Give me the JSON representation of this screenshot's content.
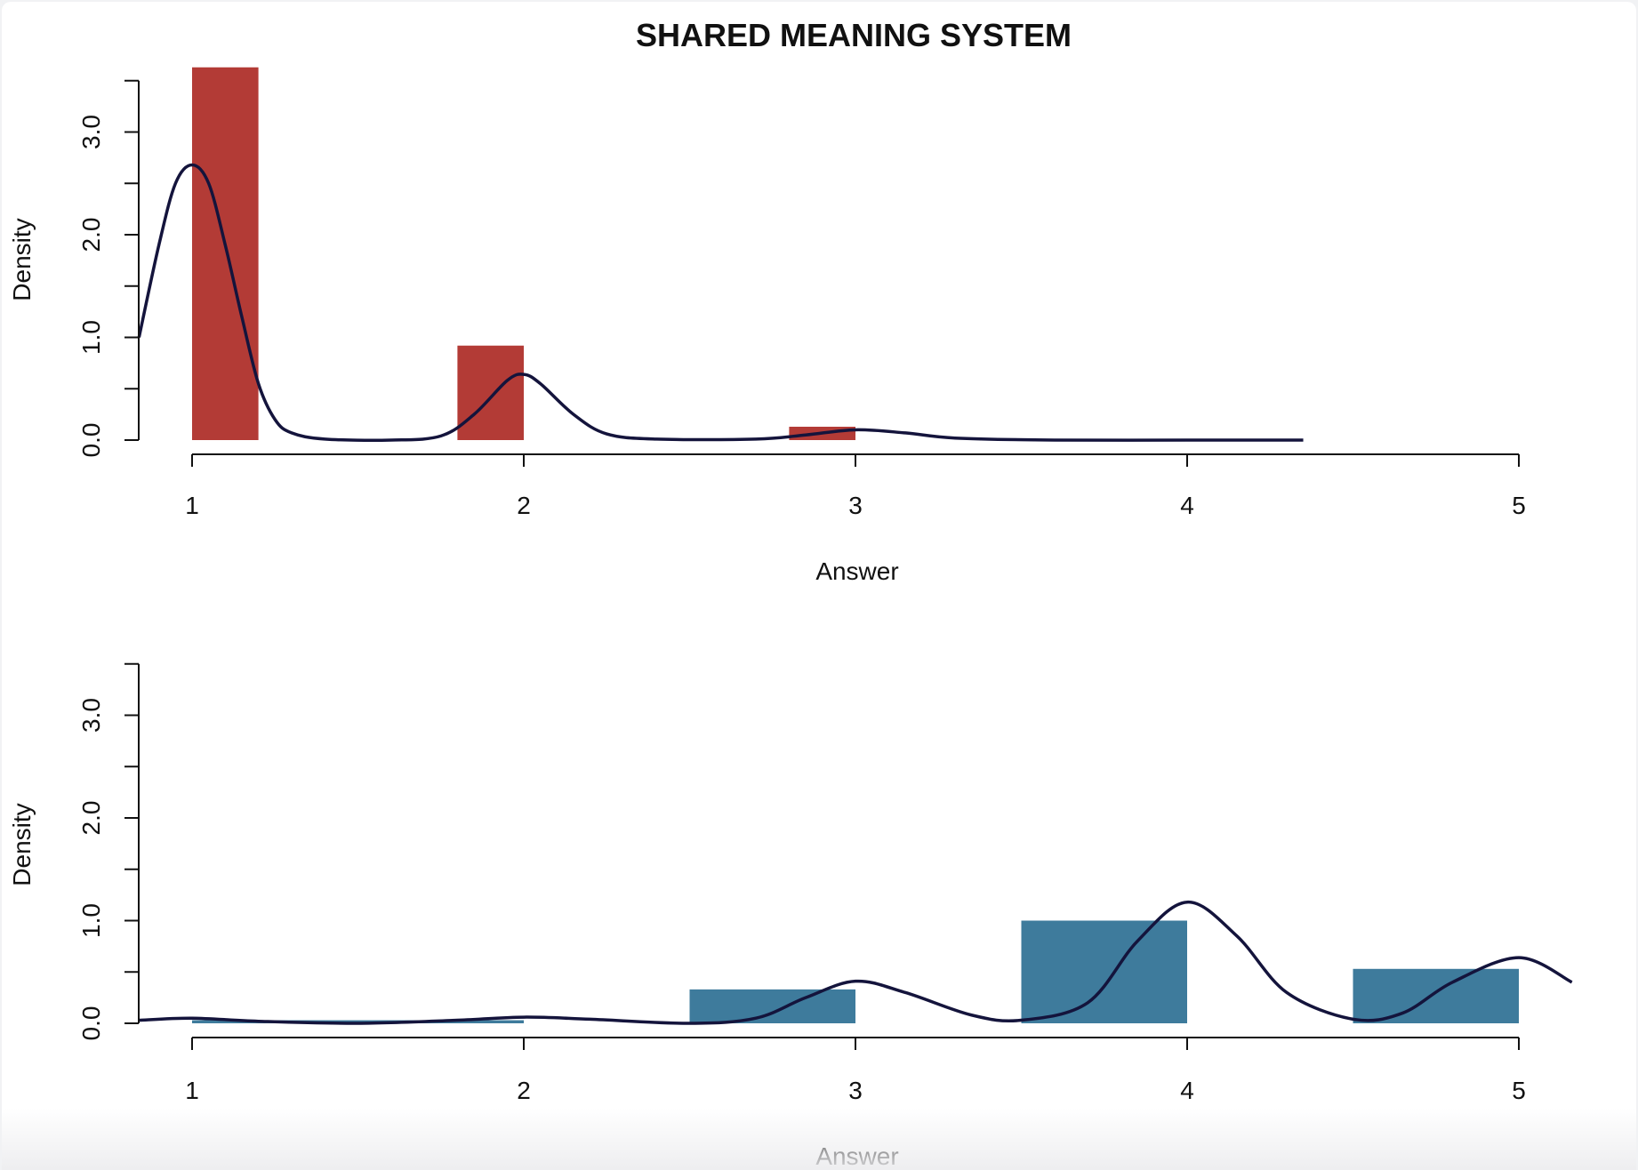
{
  "title": "SHARED MEANING SYSTEM",
  "colors": {
    "top_bars": "#b33b36",
    "bottom_bars": "#3e7b9c",
    "density_line": "#14143c",
    "axis": "#111111"
  },
  "chart_data": [
    {
      "type": "bar",
      "subtype": "histogram with density curve",
      "xlabel": "Answer",
      "ylabel": "Density",
      "xlim": [
        1,
        5
      ],
      "ylim": [
        0,
        3.5
      ],
      "x_ticks": [
        "1",
        "2",
        "3",
        "4",
        "5"
      ],
      "y_ticks": [
        "0.0",
        "1.0",
        "2.0",
        "3.0"
      ],
      "bars": [
        {
          "x0": 1.0,
          "x1": 1.2,
          "value": 3.63
        },
        {
          "x0": 1.8,
          "x1": 2.0,
          "value": 0.92
        },
        {
          "x0": 2.8,
          "x1": 3.0,
          "value": 0.13
        }
      ],
      "density_curve": {
        "x": [
          0.84,
          0.9,
          0.95,
          1.0,
          1.05,
          1.1,
          1.15,
          1.2,
          1.25,
          1.3,
          1.4,
          1.6,
          1.75,
          1.85,
          1.95,
          2.0,
          2.05,
          2.15,
          2.25,
          2.4,
          2.7,
          2.85,
          3.0,
          3.15,
          3.3,
          3.6,
          4.0,
          4.35
        ],
        "y": [
          1.0,
          1.9,
          2.5,
          2.68,
          2.5,
          1.9,
          1.2,
          0.55,
          0.2,
          0.07,
          0.01,
          0.0,
          0.04,
          0.25,
          0.58,
          0.64,
          0.55,
          0.25,
          0.06,
          0.01,
          0.01,
          0.05,
          0.1,
          0.07,
          0.02,
          0.0,
          0.0,
          0.0
        ]
      }
    },
    {
      "type": "bar",
      "subtype": "histogram with density curve",
      "xlabel": "Answer",
      "ylabel": "Density",
      "xlim": [
        1,
        5
      ],
      "ylim": [
        0,
        3.5
      ],
      "x_ticks": [
        "1",
        "2",
        "3",
        "4",
        "5"
      ],
      "y_ticks": [
        "0.0",
        "1.0",
        "2.0",
        "3.0"
      ],
      "bars": [
        {
          "x0": 1.0,
          "x1": 1.5,
          "value": 0.03
        },
        {
          "x0": 1.5,
          "x1": 2.0,
          "value": 0.03
        },
        {
          "x0": 2.5,
          "x1": 3.0,
          "value": 0.33
        },
        {
          "x0": 3.5,
          "x1": 4.0,
          "value": 1.0
        },
        {
          "x0": 4.5,
          "x1": 5.0,
          "value": 0.53
        }
      ],
      "density_curve": {
        "x": [
          0.84,
          1.0,
          1.2,
          1.5,
          1.8,
          2.0,
          2.2,
          2.5,
          2.7,
          2.85,
          3.0,
          3.15,
          3.35,
          3.5,
          3.7,
          3.85,
          4.0,
          4.15,
          4.3,
          4.5,
          4.65,
          4.8,
          5.0,
          5.16
        ],
        "y": [
          0.03,
          0.05,
          0.02,
          0.0,
          0.03,
          0.06,
          0.04,
          0.0,
          0.05,
          0.25,
          0.41,
          0.3,
          0.08,
          0.03,
          0.2,
          0.8,
          1.18,
          0.85,
          0.3,
          0.04,
          0.1,
          0.4,
          0.64,
          0.4
        ]
      }
    }
  ]
}
